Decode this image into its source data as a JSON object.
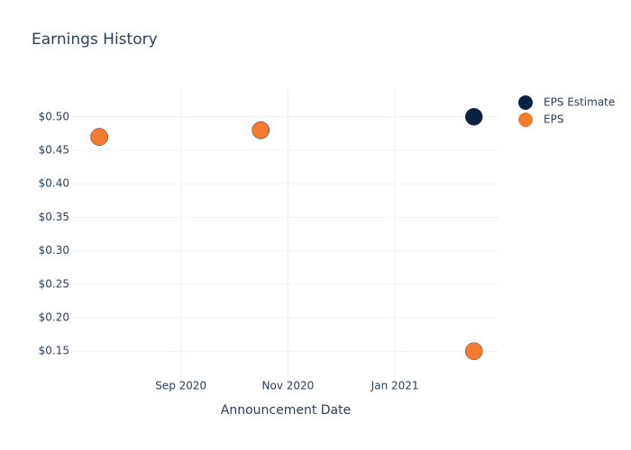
{
  "chart_data": {
    "type": "scatter",
    "title": "Earnings History",
    "x_label": "Announcement Date",
    "x": [
      "2020-07",
      "2020-10",
      "2021-02"
    ],
    "series": [
      {
        "name": "EPS Estimate",
        "color": "#0d2240",
        "values": [
          0.47,
          0.48,
          0.5
        ]
      },
      {
        "name": "EPS",
        "color": "#f47b30",
        "values": [
          0.47,
          0.48,
          0.15
        ]
      }
    ],
    "xlim": [
      "2020-07",
      "2021-02"
    ],
    "xticks": [
      {
        "value": "2020-09",
        "label": "Sep 2020"
      },
      {
        "value": "2020-11",
        "label": "Nov 2020"
      },
      {
        "value": "2021-01",
        "label": "Jan 2021"
      }
    ],
    "ylim": [
      0.11,
      0.54
    ],
    "yticks": [
      {
        "value": 0.15,
        "label": "$0.15"
      },
      {
        "value": 0.2,
        "label": "$0.20"
      },
      {
        "value": 0.25,
        "label": "$0.25"
      },
      {
        "value": 0.3,
        "label": "$0.30"
      },
      {
        "value": 0.35,
        "label": "$0.35"
      },
      {
        "value": 0.4,
        "label": "$0.40"
      },
      {
        "value": 0.45,
        "label": "$0.45"
      },
      {
        "value": 0.5,
        "label": "$0.50"
      }
    ],
    "grid": true,
    "legend": "right"
  }
}
